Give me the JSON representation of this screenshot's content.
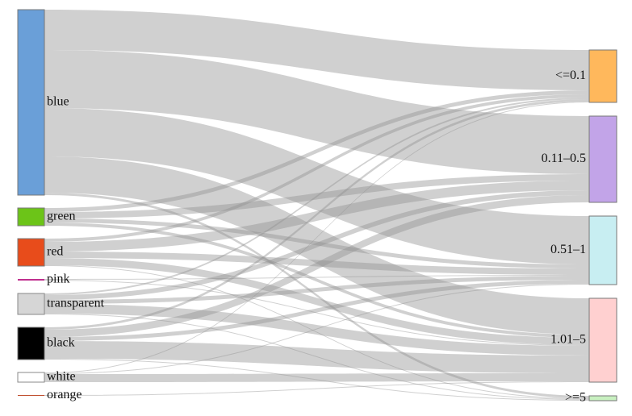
{
  "chart_data": {
    "type": "sankey",
    "nodes": [
      {
        "name": "blue",
        "color": "#6a9fd8",
        "side": "left"
      },
      {
        "name": "green",
        "color": "#6cc418",
        "side": "left"
      },
      {
        "name": "red",
        "color": "#e84c1b",
        "side": "left"
      },
      {
        "name": "pink",
        "color": "#c0308f",
        "side": "left"
      },
      {
        "name": "transparent",
        "color": "#d6d6d6",
        "side": "left"
      },
      {
        "name": "black",
        "color": "#000000",
        "side": "left"
      },
      {
        "name": "white",
        "color": "#ffffff",
        "side": "left"
      },
      {
        "name": "orange",
        "color": "#c05030",
        "side": "left"
      },
      {
        "name": "<=0.1",
        "color": "#ffb85c",
        "side": "right"
      },
      {
        "name": "0.11–0.5",
        "color": "#c2a4e8",
        "side": "right"
      },
      {
        "name": "0.51–1",
        "color": "#c8eef2",
        "side": "right"
      },
      {
        "name": "1.01–5",
        "color": "#ffd0d0",
        "side": "right"
      },
      {
        "name": ">=5",
        "color": "#c8f0c0",
        "side": "right"
      }
    ],
    "links": [
      {
        "source": 0,
        "target": 8,
        "value": 50
      },
      {
        "source": 0,
        "target": 9,
        "value": 72
      },
      {
        "source": 0,
        "target": 10,
        "value": 60
      },
      {
        "source": 0,
        "target": 11,
        "value": 45
      },
      {
        "source": 0,
        "target": 12,
        "value": 3
      },
      {
        "source": 1,
        "target": 8,
        "value": 5
      },
      {
        "source": 1,
        "target": 9,
        "value": 8
      },
      {
        "source": 1,
        "target": 10,
        "value": 5
      },
      {
        "source": 1,
        "target": 11,
        "value": 4
      },
      {
        "source": 2,
        "target": 8,
        "value": 4
      },
      {
        "source": 2,
        "target": 9,
        "value": 12
      },
      {
        "source": 2,
        "target": 10,
        "value": 8
      },
      {
        "source": 2,
        "target": 11,
        "value": 9
      },
      {
        "source": 2,
        "target": 12,
        "value": 1
      },
      {
        "source": 3,
        "target": 10,
        "value": 1
      },
      {
        "source": 3,
        "target": 11,
        "value": 1
      },
      {
        "source": 4,
        "target": 8,
        "value": 2
      },
      {
        "source": 4,
        "target": 9,
        "value": 6
      },
      {
        "source": 4,
        "target": 10,
        "value": 5
      },
      {
        "source": 4,
        "target": 11,
        "value": 12
      },
      {
        "source": 4,
        "target": 12,
        "value": 1
      },
      {
        "source": 5,
        "target": 8,
        "value": 3
      },
      {
        "source": 5,
        "target": 9,
        "value": 9
      },
      {
        "source": 5,
        "target": 10,
        "value": 5
      },
      {
        "source": 5,
        "target": 11,
        "value": 22
      },
      {
        "source": 5,
        "target": 12,
        "value": 1
      },
      {
        "source": 6,
        "target": 8,
        "value": 1
      },
      {
        "source": 6,
        "target": 10,
        "value": 1
      },
      {
        "source": 6,
        "target": 11,
        "value": 10
      },
      {
        "source": 7,
        "target": 11,
        "value": 1
      }
    ]
  }
}
